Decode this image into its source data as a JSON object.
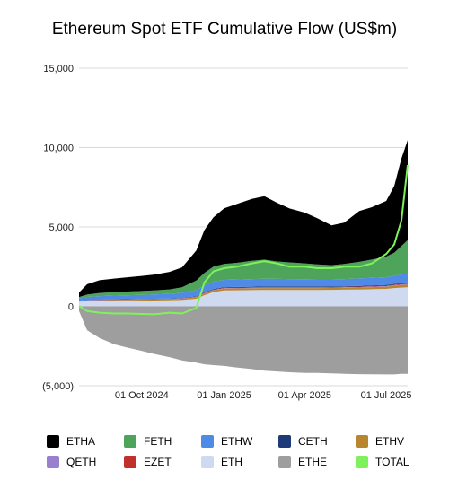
{
  "chart_data": {
    "type": "area",
    "title": "Ethereum Spot ETF Cumulative Flow (US$m)",
    "xlabel": "",
    "ylabel": "",
    "x_range": [
      "2024-07-23",
      "2025-07-25"
    ],
    "ylim": [
      -5000,
      15000
    ],
    "y_ticks": [
      {
        "value": 15000,
        "label": "15,000"
      },
      {
        "value": 10000,
        "label": "10,000"
      },
      {
        "value": 5000,
        "label": "5,000"
      },
      {
        "value": 0,
        "label": "0"
      },
      {
        "value": -5000,
        "label": "(5,000)"
      }
    ],
    "x_ticks": [
      {
        "date": "2024-10-01",
        "label": "01 Oct 2024"
      },
      {
        "date": "2025-01-01",
        "label": "01 Jan 2025"
      },
      {
        "date": "2025-04-01",
        "label": "01 Apr 2025"
      },
      {
        "date": "2025-07-01",
        "label": "01 Jul 2025"
      }
    ],
    "grid": "horizontal",
    "legend_position": "bottom",
    "x": [
      "2024-07-23",
      "2024-08-01",
      "2024-08-15",
      "2024-09-01",
      "2024-09-15",
      "2024-10-01",
      "2024-10-15",
      "2024-11-01",
      "2024-11-15",
      "2024-12-01",
      "2024-12-10",
      "2024-12-20",
      "2025-01-01",
      "2025-01-15",
      "2025-02-01",
      "2025-02-15",
      "2025-03-01",
      "2025-03-15",
      "2025-04-01",
      "2025-04-15",
      "2025-05-01",
      "2025-05-15",
      "2025-06-01",
      "2025-06-15",
      "2025-07-01",
      "2025-07-10",
      "2025-07-18",
      "2025-07-25"
    ],
    "series": [
      {
        "name": "ETHA",
        "color": "#000000",
        "values": [
          280,
          650,
          800,
          850,
          900,
          950,
          1000,
          1100,
          1250,
          1900,
          2700,
          3100,
          3500,
          3700,
          3900,
          4000,
          3700,
          3400,
          3200,
          2900,
          2500,
          2600,
          3200,
          3300,
          3500,
          4200,
          5500,
          6300
        ]
      },
      {
        "name": "FETH",
        "color": "#4ea45a",
        "values": [
          80,
          150,
          200,
          220,
          230,
          240,
          250,
          280,
          350,
          600,
          800,
          950,
          1000,
          1050,
          1150,
          1200,
          1100,
          1050,
          1000,
          950,
          900,
          950,
          1050,
          1150,
          1300,
          1450,
          1800,
          2100
        ]
      },
      {
        "name": "ETHW",
        "color": "#4f8ae6",
        "values": [
          150,
          190,
          220,
          240,
          250,
          260,
          270,
          290,
          320,
          380,
          420,
          450,
          460,
          470,
          480,
          490,
          480,
          470,
          460,
          450,
          440,
          450,
          470,
          480,
          490,
          510,
          540,
          560
        ]
      },
      {
        "name": "CETH",
        "color": "#1f3a78",
        "values": [
          10,
          15,
          18,
          20,
          20,
          20,
          20,
          22,
          25,
          30,
          35,
          38,
          40,
          40,
          42,
          42,
          42,
          42,
          42,
          42,
          42,
          42,
          44,
          46,
          48,
          50,
          55,
          60
        ]
      },
      {
        "name": "ETHV",
        "color": "#b8862f",
        "values": [
          40,
          50,
          55,
          60,
          62,
          65,
          68,
          72,
          80,
          95,
          105,
          110,
          115,
          118,
          120,
          120,
          120,
          120,
          120,
          120,
          120,
          120,
          125,
          130,
          140,
          150,
          160,
          170
        ]
      },
      {
        "name": "QETH",
        "color": "#9b7fcf",
        "values": [
          5,
          8,
          10,
          10,
          10,
          10,
          10,
          12,
          14,
          18,
          22,
          25,
          26,
          26,
          27,
          27,
          27,
          27,
          27,
          27,
          27,
          27,
          28,
          28,
          30,
          32,
          35,
          38
        ]
      },
      {
        "name": "EZET",
        "color": "#c0312b",
        "values": [
          5,
          8,
          10,
          10,
          10,
          10,
          10,
          12,
          14,
          18,
          22,
          25,
          26,
          26,
          27,
          27,
          27,
          27,
          27,
          27,
          27,
          27,
          28,
          28,
          30,
          32,
          35,
          38
        ]
      },
      {
        "name": "ETH",
        "color": "#cfdaf0",
        "values": [
          300,
          320,
          330,
          340,
          350,
          360,
          370,
          380,
          400,
          480,
          700,
          900,
          1000,
          1010,
          1020,
          1030,
          1030,
          1030,
          1030,
          1030,
          1040,
          1050,
          1060,
          1080,
          1100,
          1150,
          1180,
          1200
        ]
      },
      {
        "name": "ETHE",
        "color": "#9e9e9e",
        "values": [
          -300,
          -1500,
          -2000,
          -2400,
          -2600,
          -2800,
          -3000,
          -3200,
          -3400,
          -3550,
          -3650,
          -3700,
          -3750,
          -3850,
          -3950,
          -4050,
          -4100,
          -4150,
          -4200,
          -4200,
          -4220,
          -4250,
          -4270,
          -4280,
          -4290,
          -4290,
          -4250,
          -4250
        ]
      },
      {
        "name": "TOTAL",
        "color": "#7ff25b",
        "values": [
          20,
          -300,
          -400,
          -450,
          -450,
          -480,
          -500,
          -400,
          -450,
          -100,
          1500,
          2200,
          2400,
          2500,
          2700,
          2850,
          2700,
          2500,
          2500,
          2400,
          2400,
          2500,
          2500,
          2700,
          3300,
          3900,
          5400,
          8900
        ]
      }
    ]
  }
}
